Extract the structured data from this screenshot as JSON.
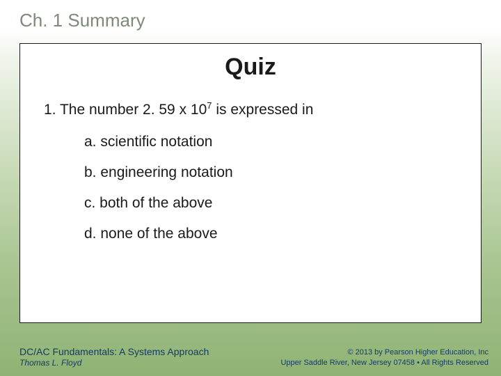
{
  "header": {
    "title": "Ch. 1 Summary",
    "title_color": "#7e897a",
    "title_fontsize": 26
  },
  "content": {
    "box_border_color": "#1a1a1a",
    "box_background": "#ffffff",
    "quiz_title": "Quiz",
    "quiz_title_fontsize": 34,
    "question_prefix": "1. The number 2. 59 x 10",
    "question_exponent": "7",
    "question_suffix": " is expressed in",
    "question_fontsize": 21,
    "options": {
      "a": "a. scientific notation",
      "b": "b. engineering notation",
      "c": "c. both of the above",
      "d": "d. none of the above"
    },
    "option_fontsize": 21
  },
  "footer": {
    "book_title": "DC/AC Fundamentals:  A Systems Approach",
    "author": "Thomas L. Floyd",
    "copyright_line1": "© 2013 by Pearson Higher Education, Inc",
    "copyright_line2": "Upper Saddle River, New Jersey 07458 • All Rights Reserved",
    "text_color": "#163a66"
  },
  "background": {
    "gradient_top": "#ffffff",
    "gradient_mid1": "#f0f5ec",
    "gradient_mid2": "#c9dbb8",
    "gradient_mid3": "#a9c592",
    "gradient_bottom": "#8fb374"
  }
}
